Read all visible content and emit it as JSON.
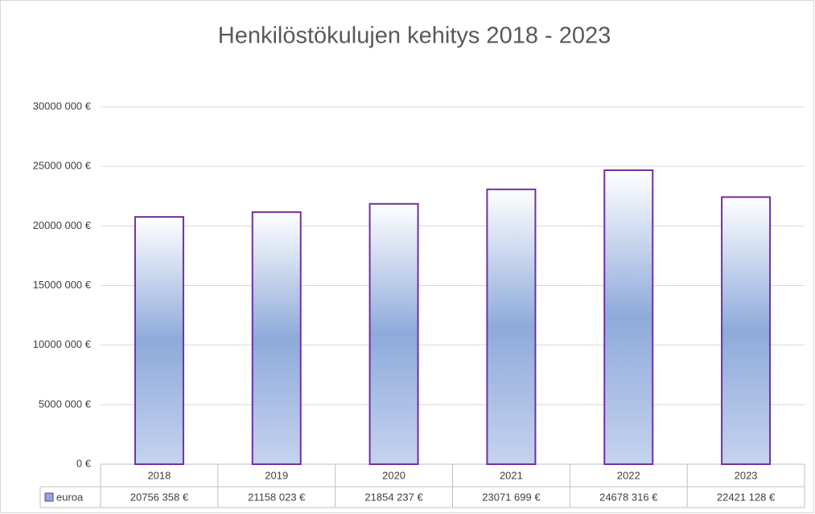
{
  "chart_data": {
    "type": "bar",
    "title": "Henkilöstökulujen kehitys 2018 - 2023",
    "categories": [
      "2018",
      "2019",
      "2020",
      "2021",
      "2022",
      "2023"
    ],
    "series": [
      {
        "name": "euroa",
        "color": "#8eaadb",
        "edge_color": "#7030a0",
        "values": [
          20756358,
          21158023,
          21854237,
          23071699,
          24678316,
          22421128
        ],
        "value_labels": [
          "20756 358 €",
          "21158 023 €",
          "21854 237 €",
          "23071 699 €",
          "24678 316 €",
          "22421 128 €"
        ]
      }
    ],
    "ylim": [
      0,
      30000000
    ],
    "yticks": [
      {
        "value": 0,
        "label": "0 €"
      },
      {
        "value": 5000000,
        "label": "5000 000 €"
      },
      {
        "value": 10000000,
        "label": "10000 000 €"
      },
      {
        "value": 15000000,
        "label": "15000 000 €"
      },
      {
        "value": 20000000,
        "label": "20000 000 €"
      },
      {
        "value": 25000000,
        "label": "25000 000 €"
      },
      {
        "value": 30000000,
        "label": "30000 000 €"
      }
    ],
    "grid": true,
    "data_table": true
  }
}
